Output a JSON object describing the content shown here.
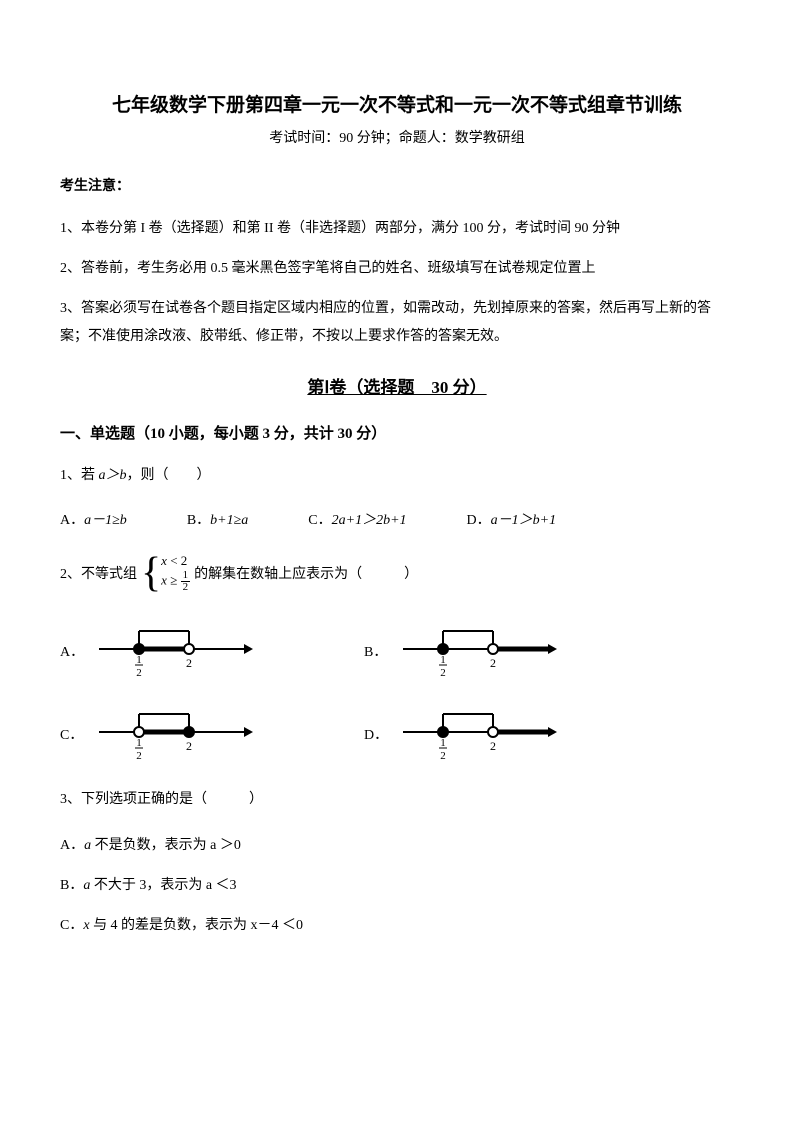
{
  "title": "七年级数学下册第四章一元一次不等式和一元一次不等式组章节训练",
  "subtitle": "考试时间：90 分钟；命题人：数学教研组",
  "notice_header": "考生注意：",
  "notices": {
    "n1": "1、本卷分第 I 卷（选择题）和第 II 卷（非选择题）两部分，满分 100 分，考试时间 90 分钟",
    "n2": "2、答卷前，考生务必用 0.5 毫米黑色签字笔将自己的姓名、班级填写在试卷规定位置上",
    "n3": "3、答案必须写在试卷各个题目指定区域内相应的位置，如需改动，先划掉原来的答案，然后再写上新的答案；不准使用涂改液、胶带纸、修正带，不按以上要求作答的答案无效。"
  },
  "section1_title": "第Ⅰ卷（选择题　30 分）",
  "subsection1": "一、单选题（10 小题，每小题 3 分，共计 30 分）",
  "q1": {
    "stem_prefix": "1、若 ",
    "stem_cond": "a＞b",
    "stem_suffix": "，则（　　）",
    "optA_label": "A．",
    "optA_expr": "a－1≥b",
    "optB_label": "B．",
    "optB_expr": "b+1≥a",
    "optC_label": "C．",
    "optC_expr": "2a+1＞2b+1",
    "optD_label": "D．",
    "optD_expr": "a－1＞b+1"
  },
  "q2": {
    "prefix": "2、不等式组",
    "line1_var": "x",
    "line1_rest": " < 2",
    "line2_var": "x",
    "line2_rest": " ≥ ",
    "frac_num": "1",
    "frac_den": "2",
    "suffix": " 的解集在数轴上应表示为（　　　）",
    "labels": {
      "A": "A．",
      "B": "B．",
      "C": "C．",
      "D": "D．"
    },
    "tick_half_num": "1",
    "tick_half_den": "2",
    "tick_two": "2",
    "diagrams": {
      "A": {
        "left_filled": true,
        "right_filled": false,
        "shade_between": true,
        "shade_right_of_right": false
      },
      "B": {
        "left_filled": true,
        "right_filled": false,
        "shade_between": false,
        "shade_right_of_right": true
      },
      "C": {
        "left_filled": false,
        "right_filled": true,
        "shade_between": true,
        "shade_right_of_right": false
      },
      "D": {
        "left_filled": true,
        "right_filled": false,
        "shade_between": false,
        "shade_right_of_right": true
      }
    },
    "colors": {
      "line": "#000000",
      "fill": "#000000",
      "bg": "#ffffff"
    }
  },
  "q3": {
    "stem": "3、下列选项正确的是（　　　）",
    "A_prefix": "A．",
    "A_var": "a",
    "A_rest": " 不是负数，表示为 a ＞0",
    "B_prefix": "B．",
    "B_var": "a",
    "B_rest": " 不大于 3，表示为 a ＜3",
    "C_prefix": "C．",
    "C_var": "x",
    "C_rest": " 与 4 的差是负数，表示为 x－4 ＜0"
  }
}
